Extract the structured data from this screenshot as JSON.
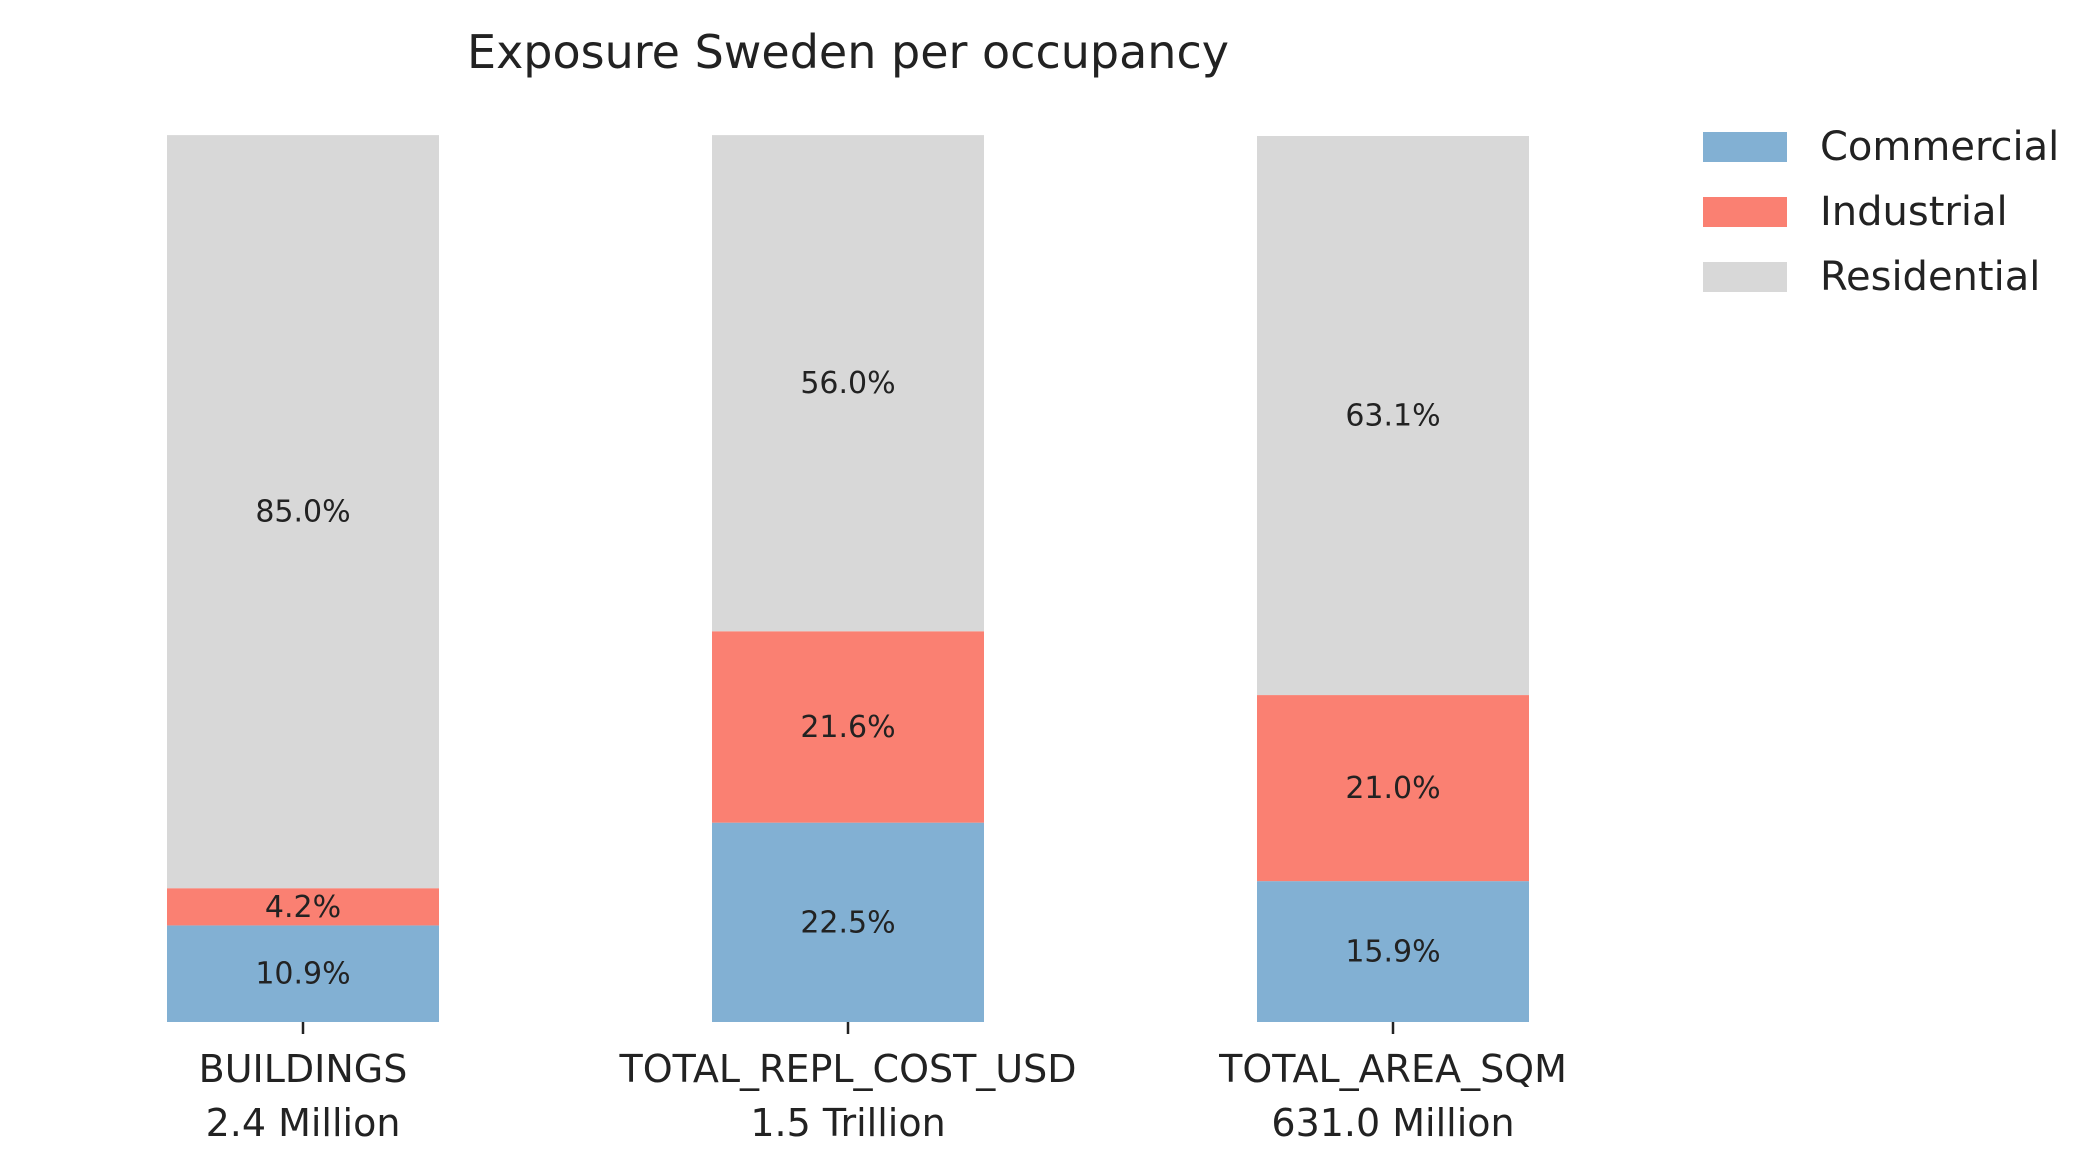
{
  "chart_data": {
    "type": "bar",
    "stacked": true,
    "percent_stacked": true,
    "title": "Exposure Sweden per occupancy",
    "xlabel": "",
    "ylabel": "",
    "ylim": [
      0,
      100
    ],
    "grid": false,
    "legend_placement": "top-right, outside plot area",
    "categories": [
      {
        "name": "BUILDINGS",
        "total": "2.4 Million"
      },
      {
        "name": "TOTAL_REPL_COST_USD",
        "total": "1.5 Trillion"
      },
      {
        "name": "TOTAL_AREA_SQM",
        "total": "631.0 Million"
      }
    ],
    "series": [
      {
        "name": "Commercial",
        "color": "#82B0D3",
        "values": [
          10.9,
          22.5,
          15.9
        ],
        "labels": [
          "10.9%",
          "22.5%",
          "15.9%"
        ]
      },
      {
        "name": "Industrial",
        "color": "#FA8072",
        "values": [
          4.2,
          21.6,
          21.0
        ],
        "labels": [
          "4.2%",
          "21.6%",
          "21.0%"
        ]
      },
      {
        "name": "Residential",
        "color": "#D8D8D8",
        "values": [
          85.0,
          56.0,
          63.1
        ],
        "labels": [
          "85.0%",
          "56.0%",
          "63.1%"
        ]
      }
    ]
  }
}
